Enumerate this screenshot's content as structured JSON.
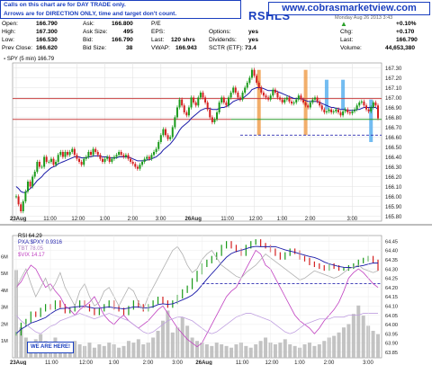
{
  "notice": {
    "line1": "Calls on this chart are for DAY TRADE only.",
    "line2": "Arrows are for DIRECTION ONLY, time and target don't count."
  },
  "ticker": "RSHLS",
  "website": "www.cobrasmarketview.com",
  "stats": {
    "open_label": "Open:",
    "open": "166.790",
    "high_label": "High:",
    "high": "167.300",
    "low_label": "Low:",
    "low": "166.530",
    "prev_label": "Prev Close:",
    "prev": "166.620",
    "ask_label": "Ask:",
    "ask": "166.800",
    "asksize_label": "Ask Size:",
    "asksize": "495",
    "bid_label": "Bid:",
    "bid": "166.790",
    "bidsize_label": "Bid Size:",
    "bidsize": "38",
    "pe_label": "P/E",
    "pe": "",
    "eps_label": "EPS:",
    "eps": "",
    "last_label": "Last:",
    "last_trade": "120 shrs",
    "vwap_label": "VWAP:",
    "vwap": "166.943",
    "options_label": "Options:",
    "options": "yes",
    "div_label": "Dividends:",
    "div": "yes",
    "sctr_label": "SCTR (ETF):",
    "sctr": "73.4",
    "chg_pct": "+0.10%",
    "chg_label": "Chg:",
    "chg": "+0.170",
    "last2_label": "Last:",
    "last2": "166.790",
    "vol_label": "Volume:",
    "vol": "44,653,380",
    "date_partial": "Monday Aug 26 2013 3:43"
  },
  "legends": {
    "main": "SPY (5 min) 166.79",
    "rsi": "RSI 64.29",
    "pxa": "PXA:$PXY 0.9316",
    "tbt": "TBT 78.05",
    "vix": "$VIX 14.17"
  },
  "we_are_here": "WE ARE HERE!",
  "colors": {
    "up": "#1a9a1a",
    "down": "#d42020",
    "ma": "#1a1aa8",
    "resistance": "#c84040",
    "support_green": "#2a9a2a",
    "dashed": "#2b2bb0",
    "orange_bar": "#f0a050",
    "blue_bar": "#5ab0ee",
    "volume": "#bdbdbd",
    "vix": "#c040c0",
    "tbt": "#c0a0e0",
    "rsi_grey": "#b0b0b0"
  },
  "chart_data": [
    {
      "type": "line",
      "title": "SPY (5 min) 166.79",
      "xlabel": "",
      "ylabel": "",
      "x_tick_labels": [
        "23Aug",
        "11:00",
        "12:00",
        "1:00",
        "2:00",
        "3:00",
        "26Aug",
        "11:00",
        "12:00",
        "1:00",
        "2:00",
        "3:00"
      ],
      "y_tick_labels": [
        "167.30",
        "167.20",
        "167.10",
        "167.00",
        "166.90",
        "166.80",
        "166.70",
        "166.60",
        "166.50",
        "166.40",
        "166.30",
        "166.20",
        "166.10",
        "166.00",
        "165.90",
        "165.80"
      ],
      "ylim": [
        165.75,
        167.35
      ],
      "grid": true,
      "series": [
        {
          "name": "SPY (5 min) 166.79",
          "x_index": [
            0,
            1,
            2,
            3,
            4,
            5,
            6,
            7,
            8,
            9,
            10,
            11,
            12,
            13,
            14,
            15,
            16,
            17,
            18,
            19,
            20,
            21,
            22,
            23,
            24,
            25,
            26,
            27,
            28,
            29,
            30,
            31,
            32,
            33,
            34,
            35,
            36,
            37,
            38,
            39,
            40,
            41,
            42,
            43,
            44,
            45,
            46,
            47,
            48,
            49,
            50,
            51,
            52,
            53,
            54,
            55,
            56,
            57,
            58,
            59,
            60,
            61,
            62,
            63,
            64,
            65,
            66,
            67,
            68,
            69,
            70,
            71,
            72,
            73,
            74,
            75,
            76,
            77,
            78,
            79,
            80,
            81,
            82,
            83,
            84,
            85,
            86,
            87,
            88,
            89,
            90,
            91,
            92,
            93,
            94,
            95,
            96,
            97,
            98,
            99,
            100,
            101,
            102,
            103,
            104,
            105,
            106,
            107,
            108,
            109,
            110,
            111,
            112,
            113,
            114,
            115,
            116,
            117,
            118,
            119,
            120,
            121,
            122,
            123,
            124,
            125,
            126,
            127,
            128,
            129,
            130,
            131,
            132,
            133,
            134,
            135,
            136,
            137,
            138,
            139,
            140,
            141,
            142,
            143,
            144,
            145,
            146,
            147,
            148,
            149,
            150,
            151,
            152,
            153,
            154,
            155
          ],
          "values": [
            166.0,
            165.92,
            165.85,
            165.95,
            166.05,
            166.15,
            166.1,
            166.2,
            166.25,
            166.35,
            166.3,
            166.3,
            166.4,
            166.35,
            166.35,
            166.38,
            166.32,
            166.35,
            166.42,
            166.45,
            166.4,
            166.45,
            166.42,
            166.45,
            166.48,
            166.42,
            166.38,
            166.35,
            166.32,
            166.38,
            166.4,
            166.45,
            166.42,
            166.48,
            166.45,
            166.42,
            166.38,
            166.35,
            166.38,
            166.4,
            166.35,
            166.38,
            166.4,
            166.42,
            166.45,
            166.42,
            166.4,
            166.42,
            166.38,
            166.35,
            166.33,
            166.3,
            166.28,
            166.32,
            166.35,
            166.38,
            166.4,
            166.38,
            166.42,
            166.45,
            166.48,
            166.55,
            166.62,
            166.68,
            166.62,
            166.58,
            166.6,
            166.7,
            166.8,
            166.9,
            166.98,
            166.92,
            166.85,
            166.82,
            166.9,
            167.0,
            166.95,
            166.92,
            167.0,
            167.05,
            167.0,
            166.95,
            166.88,
            166.8,
            166.75,
            166.78,
            166.85,
            166.95,
            167.0,
            166.95,
            166.92,
            167.0,
            167.05,
            167.1,
            167.05,
            167.0,
            166.98,
            167.05,
            167.1,
            167.15,
            167.2,
            167.28,
            167.22,
            167.15,
            167.1,
            167.05,
            167.02,
            167.0,
            166.98,
            167.02,
            167.08,
            167.05,
            167.0,
            166.98,
            166.95,
            166.98,
            167.0,
            166.96,
            166.94,
            166.95,
            166.98,
            167.02,
            166.98,
            166.95,
            166.92,
            166.9,
            166.95,
            166.98,
            167.0,
            166.96,
            166.92,
            166.88,
            166.85,
            166.86,
            166.88,
            166.85,
            166.86,
            166.88,
            166.85,
            166.82,
            166.86,
            166.88,
            166.85,
            166.84,
            166.86,
            166.88,
            166.92,
            166.95,
            166.96,
            166.92,
            166.88,
            166.86,
            166.9,
            166.95,
            166.92,
            166.79
          ]
        },
        {
          "name": "moving average",
          "values": [
            166.1,
            166.08,
            166.05,
            166.04,
            166.04,
            166.06,
            166.08,
            166.1,
            166.13,
            166.16,
            166.18,
            166.2,
            166.23,
            166.25,
            166.27,
            166.29,
            166.3,
            166.31,
            166.33,
            166.34,
            166.35,
            166.36,
            166.37,
            166.38,
            166.39,
            166.4,
            166.4,
            166.4,
            166.39,
            166.39,
            166.39,
            166.4,
            166.4,
            166.41,
            166.41,
            166.41,
            166.41,
            166.4,
            166.4,
            166.4,
            166.39,
            166.39,
            166.39,
            166.39,
            166.4,
            166.4,
            166.4,
            166.4,
            166.4,
            166.39,
            166.38,
            166.37,
            166.36,
            166.36,
            166.36,
            166.36,
            166.37,
            166.37,
            166.38,
            166.39,
            166.4,
            166.42,
            166.44,
            166.47,
            166.49,
            166.51,
            166.53,
            166.56,
            166.59,
            166.63,
            166.67,
            166.7,
            166.72,
            166.74,
            166.76,
            166.79,
            166.81,
            166.83,
            166.85,
            166.87,
            166.88,
            166.89,
            166.89,
            166.89,
            166.88,
            166.88,
            166.88,
            166.89,
            166.9,
            166.9,
            166.91,
            166.92,
            166.94,
            166.96,
            166.97,
            166.98,
            166.98,
            166.99,
            167.01,
            167.03,
            167.05,
            167.08,
            167.09,
            167.1,
            167.1,
            167.1,
            167.09,
            167.08,
            167.07,
            167.07,
            167.07,
            167.07,
            167.06,
            167.05,
            167.04,
            167.03,
            167.02,
            167.01,
            167.0,
            166.99,
            166.99,
            166.99,
            166.99,
            166.98,
            166.97,
            166.96,
            166.96,
            166.96,
            166.96,
            166.96,
            166.95,
            166.94,
            166.93,
            166.92,
            166.91,
            166.9,
            166.9,
            166.89,
            166.89,
            166.88,
            166.88,
            166.88,
            166.87,
            166.87,
            166.87,
            166.87,
            166.88,
            166.88,
            166.89,
            166.9,
            166.9,
            166.9,
            166.9,
            166.9,
            166.9,
            166.88
          ]
        }
      ],
      "annotations": {
        "resistance_line": 166.99,
        "support_line": 166.78,
        "support_extension_dashed": 166.62,
        "orange_markers_at_index": [
          104,
          124
        ],
        "blue_markers_at_index": [
          133,
          140,
          152
        ]
      }
    },
    {
      "type": "line",
      "title": "RSI 64.29",
      "xlabel": "",
      "ylabel": "",
      "x_tick_labels": [
        "23Aug",
        "11:00",
        "12:00",
        "1:00",
        "2:00",
        "3:00",
        "26Aug",
        "11:00",
        "12:00",
        "1:00",
        "2:00",
        "3:00"
      ],
      "y_tick_labels_right": [
        "64.45",
        "64.40",
        "64.35",
        "64.30",
        "64.25",
        "64.20",
        "64.15",
        "64.10",
        "64.05",
        "64.00",
        "63.95",
        "63.90",
        "63.85"
      ],
      "y_tick_labels_left": [
        "6M",
        "5M",
        "4M",
        "3M",
        "2M",
        "1M"
      ],
      "ylim": [
        63.82,
        64.48
      ],
      "series": [
        {
          "name": "PXA:$PXY 0.9316",
          "values": [
            63.95,
            64.0,
            64.02,
            64.06,
            64.05,
            64.08,
            64.1,
            64.09,
            64.12,
            64.1,
            64.07,
            64.08,
            64.1,
            64.12,
            64.1,
            64.08,
            64.06,
            64.08,
            64.1,
            64.12,
            64.09,
            64.08,
            64.06,
            64.09,
            64.12,
            64.1,
            64.08,
            64.1,
            64.12,
            64.14,
            64.12,
            64.1,
            64.12,
            64.15,
            64.18,
            64.2,
            64.24,
            64.28,
            64.32,
            64.34,
            64.36,
            64.38,
            64.42,
            64.44,
            64.42,
            64.4,
            64.38,
            64.42,
            64.44,
            64.45,
            64.43,
            64.42,
            64.4,
            64.38,
            64.36,
            64.38,
            64.4,
            64.39,
            64.36,
            64.35,
            64.33,
            64.32,
            64.31,
            64.3,
            64.32,
            64.31,
            64.3,
            64.3,
            64.31,
            64.32,
            64.34,
            64.35,
            64.36,
            64.34,
            64.3
          ]
        },
        {
          "name": "$VIX 14.17",
          "values": [
            64.2,
            64.23,
            64.28,
            64.32,
            64.3,
            64.25,
            64.2,
            64.22,
            64.18,
            64.15,
            64.1,
            64.08,
            64.05,
            64.08,
            64.1,
            64.12,
            64.15,
            64.1,
            64.05,
            64.02,
            64.0,
            64.03,
            64.05,
            64.02,
            64.0,
            63.98,
            64.0,
            64.02,
            64.05,
            64.08,
            64.1,
            64.06,
            64.02,
            63.98,
            63.95,
            63.92,
            63.9,
            63.88,
            63.9,
            63.95,
            64.0,
            64.05,
            64.1,
            64.15,
            64.18,
            64.2,
            64.25,
            64.3,
            64.35,
            64.4,
            64.38,
            64.32,
            64.3,
            64.25,
            64.2,
            64.15,
            64.1,
            64.05,
            64.02,
            64.0,
            63.98,
            63.95,
            63.98,
            64.02,
            64.05,
            64.08,
            64.12,
            64.18,
            64.25,
            64.28,
            64.3,
            64.28,
            64.25,
            64.22,
            64.2
          ]
        },
        {
          "name": "TBT 78.05",
          "values": [
            64.05,
            64.02,
            64.0,
            63.98,
            63.96,
            63.95,
            63.97,
            63.99,
            64.0,
            64.02,
            64.03,
            64.04,
            64.05,
            64.06,
            64.05,
            64.04,
            64.03,
            64.04,
            64.05,
            64.06,
            64.05,
            64.04,
            64.03,
            64.02,
            64.0,
            63.98,
            63.96,
            63.95,
            63.96,
            63.98,
            64.0,
            64.02,
            64.03,
            64.04,
            64.04,
            64.03,
            64.02,
            64.0,
            63.98,
            63.96,
            63.95,
            63.96,
            63.98,
            64.0,
            64.02,
            64.04,
            64.05,
            64.06,
            64.06,
            64.05,
            64.04,
            64.03,
            64.02,
            64.0,
            63.98,
            63.96,
            63.95,
            63.96,
            63.98,
            64.0,
            64.01,
            64.02,
            64.03,
            64.03,
            64.03,
            64.04,
            64.04,
            64.04,
            64.05,
            64.05,
            64.05,
            64.06,
            64.06,
            64.06,
            64.06
          ]
        },
        {
          "name": "RSI 64.29",
          "values": [
            64.2,
            64.25,
            64.3,
            64.22,
            64.15,
            64.2,
            64.25,
            64.18,
            64.22,
            64.28,
            64.2,
            64.15,
            64.1,
            64.18,
            64.22,
            64.15,
            64.1,
            64.12,
            64.18,
            64.2,
            64.15,
            64.1,
            64.15,
            64.2,
            64.18,
            64.12,
            64.08,
            64.15,
            64.2,
            64.25,
            64.3,
            64.35,
            64.4,
            64.42,
            64.38,
            64.32,
            64.28,
            64.3,
            64.35,
            64.38,
            64.4,
            64.36,
            64.32,
            64.3,
            64.28,
            64.26,
            64.25,
            64.28,
            64.3,
            64.32,
            64.35,
            64.38,
            64.36,
            64.34,
            64.32,
            64.3,
            64.28,
            64.26,
            64.24,
            64.25,
            64.27,
            64.29,
            64.28,
            64.27,
            64.26,
            64.25,
            64.26,
            64.28,
            64.3,
            64.31,
            64.32,
            64.3,
            64.29,
            64.28,
            64.29
          ]
        }
      ],
      "volume_millions": [
        5.2,
        1.8,
        1.2,
        0.9,
        1.1,
        1.4,
        1.0,
        0.9,
        1.2,
        0.8,
        0.7,
        0.9,
        1.0,
        0.8,
        0.7,
        0.9,
        0.6,
        0.8,
        0.7,
        0.9,
        0.8,
        0.6,
        0.7,
        1.0,
        0.9,
        1.1,
        0.8,
        0.9,
        1.2,
        1.6,
        2.2,
        2.8,
        1.5,
        1.8,
        2.4,
        1.9,
        1.2,
        1.0,
        0.9,
        0.8,
        0.7,
        0.9,
        0.8,
        0.7,
        0.6,
        0.8,
        0.9,
        0.7,
        0.6,
        0.8,
        1.0,
        1.2,
        0.9,
        0.8,
        0.9,
        1.1,
        0.8,
        0.7,
        0.6,
        0.8,
        0.9,
        0.7,
        0.8,
        1.0,
        1.2,
        1.3,
        1.5,
        1.8,
        2.0,
        2.6,
        3.1,
        2.5,
        1.9,
        1.6,
        1.4
      ],
      "dashed_level": 64.22
    }
  ]
}
